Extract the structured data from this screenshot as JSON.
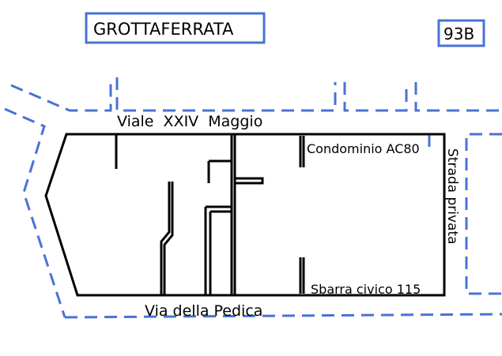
{
  "header": {
    "town": "GROTTAFERRATA",
    "sheet": "93B"
  },
  "map": {
    "streets": {
      "north": "Viale  XXIV  Maggio",
      "south": "Via della Pedica",
      "east": "Strada privata"
    },
    "places": {
      "condominio": "Condominio AC80",
      "sbarra": "Sbarra civico 115"
    },
    "colors": {
      "road_edge": "#4a72d6",
      "frame": "#4a72d6",
      "walls": "#000000"
    }
  }
}
